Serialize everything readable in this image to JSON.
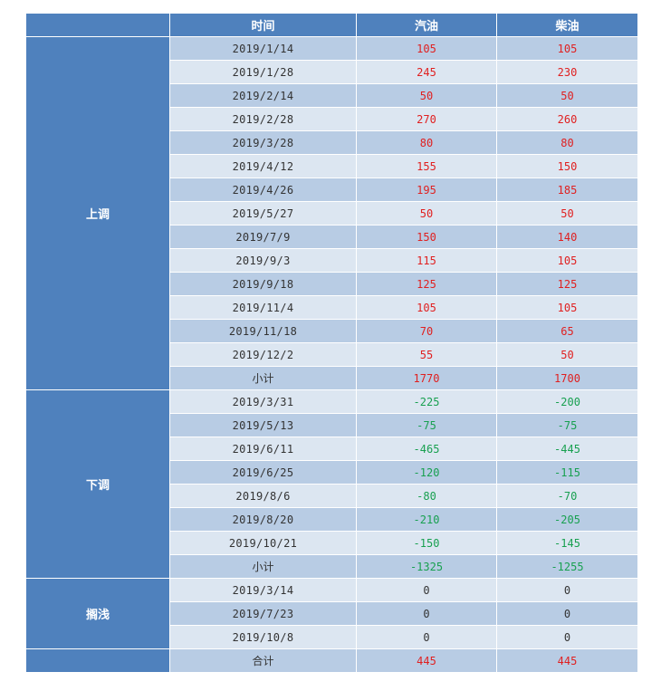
{
  "header": {
    "col0": "",
    "col1": "时间",
    "col2": "汽油",
    "col3": "柴油"
  },
  "groups": [
    {
      "label": "上调",
      "rows": [
        {
          "date": "2019/1/14",
          "gasoline": "105",
          "diesel": "105"
        },
        {
          "date": "2019/1/28",
          "gasoline": "245",
          "diesel": "230"
        },
        {
          "date": "2019/2/14",
          "gasoline": "50",
          "diesel": "50"
        },
        {
          "date": "2019/2/28",
          "gasoline": "270",
          "diesel": "260"
        },
        {
          "date": "2019/3/28",
          "gasoline": "80",
          "diesel": "80"
        },
        {
          "date": "2019/4/12",
          "gasoline": "155",
          "diesel": "150"
        },
        {
          "date": "2019/4/26",
          "gasoline": "195",
          "diesel": "185"
        },
        {
          "date": "2019/5/27",
          "gasoline": "50",
          "diesel": "50"
        },
        {
          "date": "2019/7/9",
          "gasoline": "150",
          "diesel": "140"
        },
        {
          "date": "2019/9/3",
          "gasoline": "115",
          "diesel": "105"
        },
        {
          "date": "2019/9/18",
          "gasoline": "125",
          "diesel": "125"
        },
        {
          "date": "2019/11/4",
          "gasoline": "105",
          "diesel": "105"
        },
        {
          "date": "2019/11/18",
          "gasoline": "70",
          "diesel": "65"
        },
        {
          "date": "2019/12/2",
          "gasoline": "55",
          "diesel": "50"
        },
        {
          "date": "小计",
          "gasoline": "1770",
          "diesel": "1700"
        }
      ]
    },
    {
      "label": "下调",
      "rows": [
        {
          "date": "2019/3/31",
          "gasoline": "-225",
          "diesel": "-200"
        },
        {
          "date": "2019/5/13",
          "gasoline": "-75",
          "diesel": "-75"
        },
        {
          "date": "2019/6/11",
          "gasoline": "-465",
          "diesel": "-445"
        },
        {
          "date": "2019/6/25",
          "gasoline": "-120",
          "diesel": "-115"
        },
        {
          "date": "2019/8/6",
          "gasoline": "-80",
          "diesel": "-70"
        },
        {
          "date": "2019/8/20",
          "gasoline": "-210",
          "diesel": "-205"
        },
        {
          "date": "2019/10/21",
          "gasoline": "-150",
          "diesel": "-145"
        },
        {
          "date": "小计",
          "gasoline": "-1325",
          "diesel": "-1255"
        }
      ]
    },
    {
      "label": "搁浅",
      "rows": [
        {
          "date": "2019/3/14",
          "gasoline": "0",
          "diesel": "0"
        },
        {
          "date": "2019/7/23",
          "gasoline": "0",
          "diesel": "0"
        },
        {
          "date": "2019/10/8",
          "gasoline": "0",
          "diesel": "0"
        }
      ]
    }
  ],
  "total": {
    "label": "合计",
    "gasoline": "445",
    "diesel": "445"
  },
  "colors": {
    "header": "#4f81bd",
    "row_dark": "#b8cce4",
    "row_light": "#dce6f1",
    "up": "#e02020",
    "down": "#18a050"
  }
}
